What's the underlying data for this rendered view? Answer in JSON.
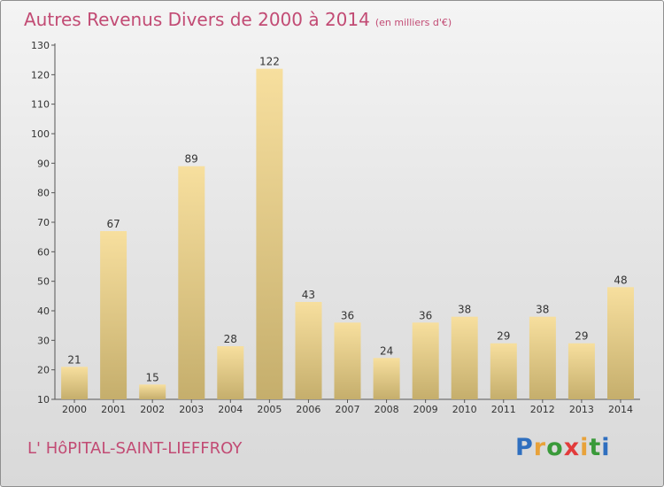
{
  "title": "Autres Revenus Divers de 2000 à 2014",
  "subtitle": "(en milliers d'€)",
  "commune": "L' HôPITAL-SAINT-LIEFFROY",
  "logo": {
    "letters": [
      "P",
      "r",
      "o",
      "x",
      "i",
      "t",
      "i"
    ],
    "colors": [
      "#2f6fbf",
      "#e8a23a",
      "#3a9a3a",
      "#e23b3b",
      "#e8a23a",
      "#3a9a3a",
      "#2f6fbf"
    ]
  },
  "colors": {
    "text_accent": "#c24b74",
    "bar_light": "#f7df9e",
    "bar_dark": "#c5ae6c"
  },
  "chart_data": {
    "type": "bar",
    "categories": [
      "2000",
      "2001",
      "2002",
      "2003",
      "2004",
      "2005",
      "2006",
      "2007",
      "2008",
      "2009",
      "2010",
      "2011",
      "2012",
      "2013",
      "2014"
    ],
    "values": [
      21,
      67,
      15,
      89,
      28,
      122,
      43,
      36,
      24,
      36,
      38,
      29,
      38,
      29,
      48
    ],
    "title": "Autres Revenus Divers de 2000 à 2014",
    "xlabel": "",
    "ylabel": "",
    "ylim": [
      10,
      130
    ],
    "yticks": [
      10,
      20,
      30,
      40,
      50,
      60,
      70,
      80,
      90,
      100,
      110,
      120,
      130
    ],
    "grid": false,
    "legend": "none"
  }
}
